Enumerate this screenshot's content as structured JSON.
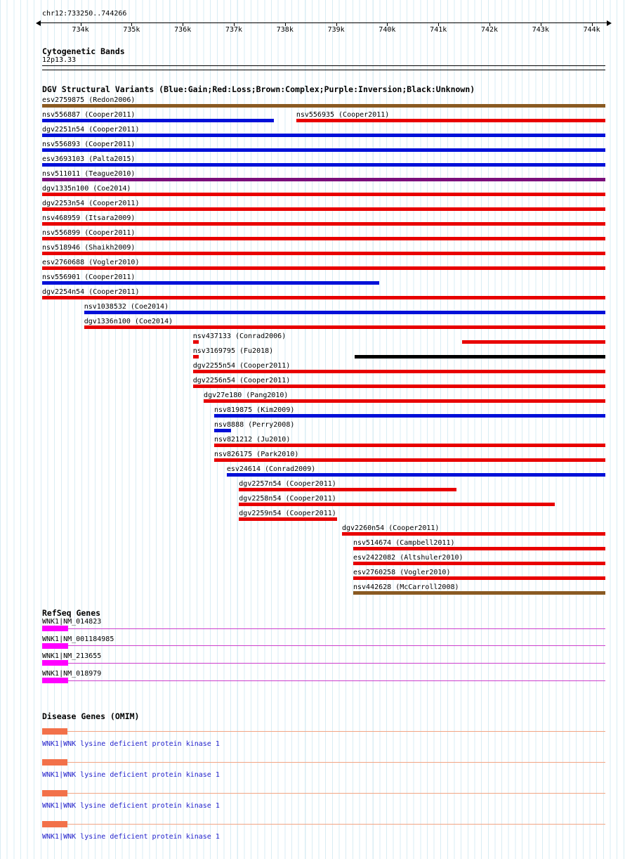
{
  "chart_data": {
    "type": "genome-tracks",
    "title": "chr12:733250..744266",
    "region": {
      "chrom": "chr12",
      "start": 733250,
      "end": 744266
    },
    "xlim": [
      733250,
      744266
    ],
    "ruler_ticks": [
      {
        "label": "734k",
        "bp": 734000
      },
      {
        "label": "735k",
        "bp": 735000
      },
      {
        "label": "736k",
        "bp": 736000
      },
      {
        "label": "737k",
        "bp": 737000
      },
      {
        "label": "738k",
        "bp": 738000
      },
      {
        "label": "739k",
        "bp": 739000
      },
      {
        "label": "740k",
        "bp": 740000
      },
      {
        "label": "741k",
        "bp": 741000
      },
      {
        "label": "742k",
        "bp": 742000
      },
      {
        "label": "743k",
        "bp": 743000
      },
      {
        "label": "744k",
        "bp": 744000
      }
    ],
    "cytoband": {
      "header": "Cytogenetic Bands",
      "band": "12p13.33"
    },
    "dgv": {
      "header": "DGV Structural Variants (Blue:Gain;Red:Loss;Brown:Complex;Purple:Inversion;Black:Unknown)",
      "colors": {
        "gain": "#0010d8",
        "loss": "#e80000",
        "complex": "#8a5a22",
        "inversion": "#7a0f7a",
        "unknown": "#000000"
      },
      "variants": [
        {
          "row": 0,
          "name": "esv2759875",
          "cite": "Redon2006",
          "type": "complex",
          "segments": [
            [
              733250,
              744266,
              "thick"
            ]
          ]
        },
        {
          "row": 1,
          "name": "nsv556887",
          "cite": "Cooper2011",
          "type": "gain",
          "segments": [
            [
              733250,
              737780,
              "thick"
            ]
          ]
        },
        {
          "row": 1,
          "name": "nsv556935",
          "cite": "Cooper2011",
          "type": "loss",
          "segments": [
            [
              738220,
              744266,
              "thick"
            ]
          ]
        },
        {
          "row": 2,
          "name": "dgv2251n54",
          "cite": "Cooper2011",
          "type": "gain",
          "segments": [
            [
              733250,
              744266,
              "thick"
            ]
          ]
        },
        {
          "row": 3,
          "name": "nsv556893",
          "cite": "Cooper2011",
          "type": "gain",
          "segments": [
            [
              733250,
              744266,
              "thick"
            ]
          ]
        },
        {
          "row": 4,
          "name": "esv3693103",
          "cite": "Palta2015",
          "type": "gain",
          "segments": [
            [
              733250,
              744266,
              "thick"
            ]
          ]
        },
        {
          "row": 5,
          "name": "nsv511011",
          "cite": "Teague2010",
          "type": "inversion",
          "segments": [
            [
              733250,
              744266,
              "thick"
            ]
          ]
        },
        {
          "row": 6,
          "name": "dgv1335n100",
          "cite": "Coe2014",
          "type": "loss",
          "segments": [
            [
              733250,
              744266,
              "thick"
            ]
          ]
        },
        {
          "row": 7,
          "name": "dgv2253n54",
          "cite": "Cooper2011",
          "type": "loss",
          "segments": [
            [
              733250,
              744266,
              "thick"
            ]
          ]
        },
        {
          "row": 8,
          "name": "nsv468959",
          "cite": "Itsara2009",
          "type": "loss",
          "segments": [
            [
              733250,
              744266,
              "thick"
            ]
          ]
        },
        {
          "row": 9,
          "name": "nsv556899",
          "cite": "Cooper2011",
          "type": "loss",
          "segments": [
            [
              733250,
              744266,
              "thick"
            ]
          ]
        },
        {
          "row": 10,
          "name": "nsv518946",
          "cite": "Shaikh2009",
          "type": "loss",
          "segments": [
            [
              733250,
              744266,
              "thick"
            ]
          ]
        },
        {
          "row": 11,
          "name": "esv2760688",
          "cite": "Vogler2010",
          "type": "loss",
          "segments": [
            [
              733250,
              744266,
              "thick"
            ]
          ]
        },
        {
          "row": 12,
          "name": "nsv556901",
          "cite": "Cooper2011",
          "type": "gain",
          "segments": [
            [
              733250,
              739840,
              "thick"
            ]
          ]
        },
        {
          "row": 13,
          "name": "dgv2254n54",
          "cite": "Cooper2011",
          "type": "loss",
          "segments": [
            [
              733250,
              744266,
              "thick"
            ]
          ]
        },
        {
          "row": 14,
          "name": "nsv1038532",
          "cite": "Coe2014",
          "type": "gain",
          "segments": [
            [
              734070,
              744266,
              "thick"
            ]
          ]
        },
        {
          "row": 15,
          "name": "dgv1336n100",
          "cite": "Coe2014",
          "type": "loss",
          "segments": [
            [
              734070,
              744266,
              "thick"
            ]
          ]
        },
        {
          "row": 16,
          "name": "nsv437133",
          "cite": "Conrad2006",
          "type": "loss",
          "segments": [
            [
              736200,
              736310,
              "thick"
            ],
            [
              741460,
              744266,
              "thick"
            ]
          ]
        },
        {
          "row": 17,
          "name": "nsv3169795",
          "cite": "Fu2018",
          "type": "unknown",
          "segments": [
            [
              736200,
              736310,
              "thick",
              "loss"
            ],
            [
              739360,
              744266,
              "thick"
            ]
          ]
        },
        {
          "row": 18,
          "name": "dgv2255n54",
          "cite": "Cooper2011",
          "type": "loss",
          "segments": [
            [
              736200,
              744266,
              "thick"
            ]
          ]
        },
        {
          "row": 19,
          "name": "dgv2256n54",
          "cite": "Cooper2011",
          "type": "loss",
          "segments": [
            [
              736200,
              744266,
              "thick"
            ]
          ]
        },
        {
          "row": 20,
          "name": "dgv27e180",
          "cite": "Pang2010",
          "type": "loss",
          "segments": [
            [
              736410,
              744266,
              "thick"
            ]
          ]
        },
        {
          "row": 21,
          "name": "nsv819875",
          "cite": "Kim2009",
          "type": "gain",
          "segments": [
            [
              736615,
              744266,
              "thick"
            ]
          ]
        },
        {
          "row": 22,
          "name": "nsv8888",
          "cite": "Perry2008",
          "type": "gain",
          "segments": [
            [
              736615,
              736950,
              "thick"
            ]
          ]
        },
        {
          "row": 23,
          "name": "nsv821212",
          "cite": "Ju2010",
          "type": "loss",
          "segments": [
            [
              736615,
              744266,
              "thick"
            ]
          ]
        },
        {
          "row": 24,
          "name": "nsv826175",
          "cite": "Park2010",
          "type": "loss",
          "segments": [
            [
              736615,
              744266,
              "thick"
            ]
          ]
        },
        {
          "row": 25,
          "name": "esv24614",
          "cite": "Conrad2009",
          "type": "gain",
          "segments": [
            [
              736860,
              744266,
              "thick"
            ]
          ]
        },
        {
          "row": 26,
          "name": "dgv2257n54",
          "cite": "Cooper2011",
          "type": "loss",
          "segments": [
            [
              737100,
              741350,
              "thick"
            ]
          ]
        },
        {
          "row": 27,
          "name": "dgv2258n54",
          "cite": "Cooper2011",
          "type": "loss",
          "segments": [
            [
              737100,
              743280,
              "thick"
            ]
          ]
        },
        {
          "row": 28,
          "name": "dgv2259n54",
          "cite": "Cooper2011",
          "type": "loss",
          "segments": [
            [
              737100,
              739020,
              "thick"
            ]
          ]
        },
        {
          "row": 29,
          "name": "dgv2260n54",
          "cite": "Cooper2011",
          "type": "loss",
          "segments": [
            [
              739115,
              744266,
              "thick"
            ]
          ]
        },
        {
          "row": 30,
          "name": "nsv514674",
          "cite": "Campbell2011",
          "type": "loss",
          "segments": [
            [
              739335,
              744266,
              "thick"
            ]
          ]
        },
        {
          "row": 31,
          "name": "esv2422082",
          "cite": "Altshuler2010",
          "type": "loss",
          "segments": [
            [
              739335,
              744266,
              "thick"
            ]
          ]
        },
        {
          "row": 32,
          "name": "esv2760258",
          "cite": "Vogler2010",
          "type": "loss",
          "segments": [
            [
              739335,
              744266,
              "thick"
            ]
          ]
        },
        {
          "row": 33,
          "name": "nsv442628",
          "cite": "McCarroll2008",
          "type": "complex",
          "segments": [
            [
              739335,
              744266,
              "thick"
            ]
          ]
        }
      ]
    },
    "refseq": {
      "header": "RefSeq Genes",
      "box_color": "#ff00ff",
      "line_color": "#cc3fcc",
      "items": [
        {
          "label": "WNK1|NM_014823",
          "box": [
            733250,
            733760
          ],
          "line": [
            733250,
            744266
          ]
        },
        {
          "label": "WNK1|NM_001184985",
          "box": [
            733250,
            733760
          ],
          "line": [
            733250,
            744266
          ]
        },
        {
          "label": "WNK1|NM_213655",
          "box": [
            733250,
            733760
          ],
          "line": [
            733250,
            744266
          ]
        },
        {
          "label": "WNK1|NM_018979",
          "box": [
            733250,
            733760
          ],
          "line": [
            733250,
            744266
          ]
        }
      ]
    },
    "omim": {
      "header": "Disease Genes (OMIM)",
      "box_color": "#f2714a",
      "line_color": "#f2a584",
      "label_color": "#2222cc",
      "items": [
        {
          "label": "WNK1|WNK lysine deficient protein kinase 1",
          "box": [
            733250,
            733740
          ],
          "line": [
            733250,
            744266
          ]
        },
        {
          "label": "WNK1|WNK lysine deficient protein kinase 1",
          "box": [
            733250,
            733740
          ],
          "line": [
            733250,
            744266
          ]
        },
        {
          "label": "WNK1|WNK lysine deficient protein kinase 1",
          "box": [
            733250,
            733740
          ],
          "line": [
            733250,
            744266
          ]
        },
        {
          "label": "WNK1|WNK lysine deficient protein kinase 1",
          "box": [
            733250,
            733740
          ],
          "line": [
            733250,
            744266
          ]
        }
      ]
    }
  }
}
